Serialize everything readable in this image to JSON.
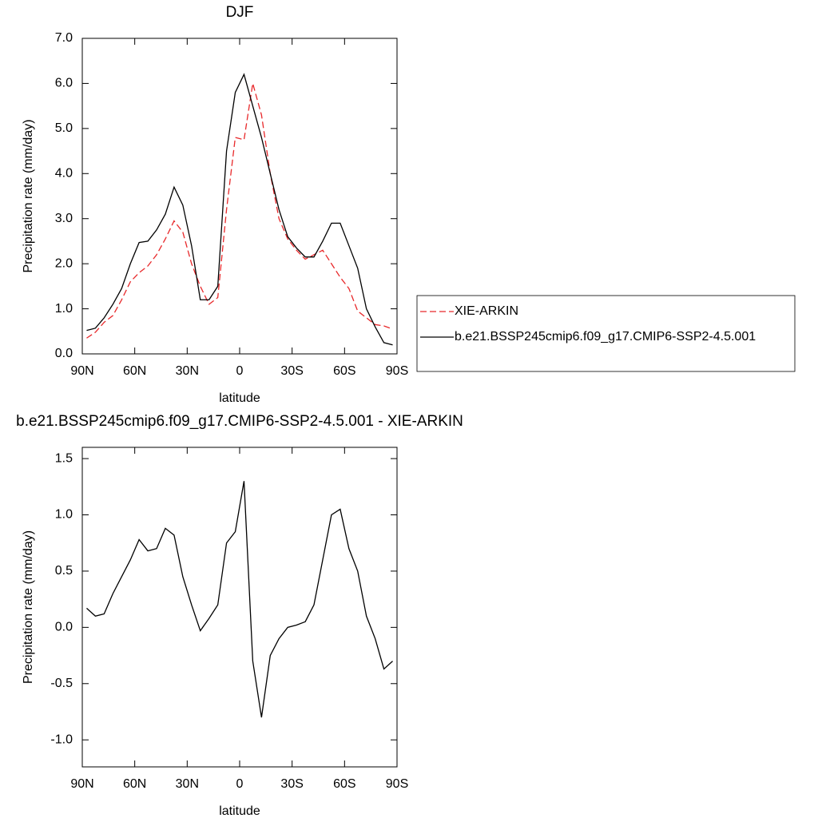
{
  "chart_data": [
    {
      "type": "line",
      "title": "DJF",
      "xlabel": "latitude",
      "ylabel": "Precipitation rate (mm/day)",
      "x": [
        87.5,
        82.5,
        77.5,
        72.5,
        67.5,
        62.5,
        57.5,
        52.5,
        47.5,
        42.5,
        37.5,
        32.5,
        27.5,
        22.5,
        17.5,
        12.5,
        7.5,
        2.5,
        -2.5,
        -7.5,
        -12.5,
        -17.5,
        -22.5,
        -27.5,
        -32.5,
        -37.5,
        -42.5,
        -47.5,
        -52.5,
        -57.5,
        -62.5,
        -67.5,
        -72.5,
        -77.5,
        -82.5,
        -87.5
      ],
      "series": [
        {
          "name": "XIE-ARKIN",
          "color": "#e8282a",
          "style": "dashed",
          "values": [
            0.35,
            0.48,
            0.7,
            0.85,
            1.2,
            1.6,
            1.8,
            1.95,
            2.2,
            2.55,
            2.95,
            2.7,
            2.0,
            1.5,
            1.1,
            1.25,
            3.2,
            4.8,
            4.75,
            6.0,
            5.3,
            4.0,
            3.0,
            2.55,
            2.3,
            2.1,
            2.2,
            2.3,
            2.0,
            1.7,
            1.45,
            0.95,
            0.8,
            0.65,
            0.62,
            0.55
          ]
        },
        {
          "name": "b.e21.BSSP245cmip6.f09_g17.CMIP6-SSP2-4.5.001",
          "color": "#000000",
          "style": "solid",
          "values": [
            0.52,
            0.57,
            0.8,
            1.1,
            1.45,
            2.0,
            2.47,
            2.5,
            2.75,
            3.1,
            3.7,
            3.3,
            2.4,
            1.2,
            1.2,
            1.5,
            4.5,
            5.8,
            6.2,
            5.5,
            4.8,
            4.0,
            3.2,
            2.6,
            2.35,
            2.15,
            2.15,
            2.5,
            2.9,
            2.9,
            2.4,
            1.9,
            1.0,
            0.6,
            0.25,
            0.2
          ]
        }
      ],
      "xlim": [
        90,
        -90
      ],
      "xticks": [
        {
          "value": 90,
          "label": "90N"
        },
        {
          "value": 60,
          "label": "60N"
        },
        {
          "value": 30,
          "label": "30N"
        },
        0,
        {
          "value": -30,
          "label": "30S"
        },
        {
          "value": -60,
          "label": "60S"
        },
        {
          "value": -90,
          "label": "90S"
        }
      ],
      "ylim": [
        0,
        7
      ],
      "yticks": [
        {
          "value": 0,
          "label": "0.0"
        },
        {
          "value": 1,
          "label": "1.0"
        },
        {
          "value": 2,
          "label": "2.0"
        },
        {
          "value": 3,
          "label": "3.0"
        },
        {
          "value": 4,
          "label": "4.0"
        },
        {
          "value": 5,
          "label": "5.0"
        },
        {
          "value": 6,
          "label": "6.0"
        },
        {
          "value": 7,
          "label": "7.0"
        }
      ],
      "legend": "right"
    },
    {
      "type": "line",
      "title": "b.e21.BSSP245cmip6.f09_g17.CMIP6-SSP2-4.5.001 - XIE-ARKIN",
      "xlabel": "latitude",
      "ylabel": "Precipitation rate (mm/day)",
      "x": [
        87.5,
        82.5,
        77.5,
        72.5,
        67.5,
        62.5,
        57.5,
        52.5,
        47.5,
        42.5,
        37.5,
        32.5,
        27.5,
        22.5,
        17.5,
        12.5,
        7.5,
        2.5,
        -2.5,
        -7.5,
        -12.5,
        -17.5,
        -22.5,
        -27.5,
        -32.5,
        -37.5,
        -42.5,
        -47.5,
        -52.5,
        -57.5,
        -62.5,
        -67.5,
        -72.5,
        -77.5,
        -82.5,
        -87.5
      ],
      "series": [
        {
          "color": "#000000",
          "style": "solid",
          "values": [
            0.17,
            0.1,
            0.12,
            0.3,
            0.45,
            0.6,
            0.78,
            0.68,
            0.7,
            0.88,
            0.82,
            0.45,
            0.2,
            -0.03,
            0.08,
            0.2,
            0.75,
            0.85,
            1.3,
            -0.3,
            -0.8,
            -0.25,
            -0.1,
            0.0,
            0.02,
            0.05,
            0.2,
            0.6,
            1.0,
            1.05,
            0.7,
            0.5,
            0.1,
            -0.1,
            -0.37,
            -0.3
          ]
        }
      ],
      "xlim": [
        90,
        -90
      ],
      "xticks": [
        {
          "value": 90,
          "label": "90N"
        },
        {
          "value": 60,
          "label": "60N"
        },
        {
          "value": 30,
          "label": "30N"
        },
        0,
        {
          "value": -30,
          "label": "30S"
        },
        {
          "value": -60,
          "label": "60S"
        },
        {
          "value": -90,
          "label": "90S"
        }
      ],
      "ylim": [
        -1.24,
        1.6
      ],
      "yticks": [
        {
          "value": -1,
          "label": "-1.0"
        },
        -0.5,
        {
          "value": 0,
          "label": "0.0"
        },
        0.5,
        {
          "value": 1,
          "label": "1.0"
        },
        1.5
      ]
    }
  ]
}
